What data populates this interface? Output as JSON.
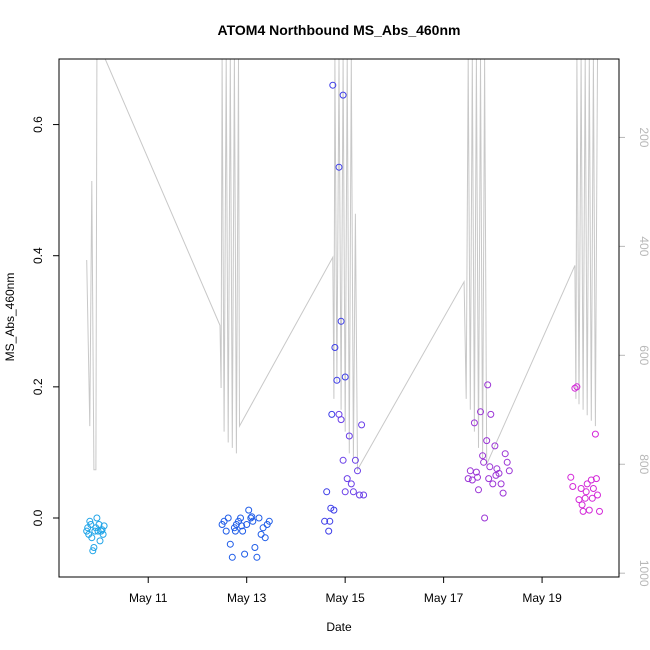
{
  "chart_data": {
    "type": "scatter",
    "title": "ATOM4 Northbound MS_Abs_460nm",
    "xlabel": "Date",
    "ylabel": "MS_Abs_460nm",
    "x_axis": {
      "type": "date",
      "range": [
        "2017-05-09 04:30",
        "2017-05-20 13:30"
      ],
      "ticks": [
        {
          "value": "2017-05-11",
          "label": "May 11"
        },
        {
          "value": "2017-05-13",
          "label": "May 13"
        },
        {
          "value": "2017-05-15",
          "label": "May 15"
        },
        {
          "value": "2017-05-17",
          "label": "May 17"
        },
        {
          "value": "2017-05-19",
          "label": "May 19"
        }
      ]
    },
    "y_axis": {
      "range": [
        -0.09,
        0.7
      ],
      "ticks": [
        0.0,
        0.2,
        0.4,
        0.6
      ],
      "tick_labels": [
        "0.0",
        "0.2",
        "0.4",
        "0.6"
      ]
    },
    "y2_axis": {
      "reversed": true,
      "range": [
        1007,
        56
      ],
      "ticks": [
        200,
        400,
        600,
        800,
        1000
      ],
      "tick_labels": [
        "200",
        "400",
        "600",
        "800",
        "1000"
      ],
      "color": "#b8b8b8"
    },
    "grid": false,
    "legend": "none",
    "series": [
      {
        "color": "#1fa4e8",
        "points": [
          [
            "2017-05-09 18:00",
            -0.02
          ],
          [
            "2017-05-09 18:30",
            -0.015
          ],
          [
            "2017-05-09 19:00",
            -0.025
          ],
          [
            "2017-05-09 19:30",
            -0.005
          ],
          [
            "2017-05-09 20:00",
            -0.01
          ],
          [
            "2017-05-09 20:30",
            -0.03
          ],
          [
            "2017-05-09 21:00",
            -0.05
          ],
          [
            "2017-05-09 21:30",
            -0.045
          ],
          [
            "2017-05-09 22:00",
            -0.02
          ],
          [
            "2017-05-09 22:30",
            -0.015
          ],
          [
            "2017-05-09 23:00",
            0.0
          ],
          [
            "2017-05-09 23:30",
            -0.02
          ],
          [
            "2017-05-10 00:00",
            -0.01
          ],
          [
            "2017-05-10 00:30",
            -0.035
          ],
          [
            "2017-05-10 01:00",
            -0.02
          ],
          [
            "2017-05-10 01:30",
            -0.018
          ],
          [
            "2017-05-10 02:00",
            -0.025
          ],
          [
            "2017-05-10 02:30",
            -0.012
          ]
        ]
      },
      {
        "color": "#1e5ce8",
        "points": [
          [
            "2017-05-12 12:00",
            -0.01
          ],
          [
            "2017-05-12 13:00",
            -0.005
          ],
          [
            "2017-05-12 14:00",
            -0.02
          ],
          [
            "2017-05-12 15:00",
            0.0
          ],
          [
            "2017-05-12 16:00",
            -0.04
          ],
          [
            "2017-05-12 17:00",
            -0.06
          ],
          [
            "2017-05-12 18:00",
            -0.015
          ],
          [
            "2017-05-12 19:00",
            -0.01
          ],
          [
            "2017-05-12 20:00",
            -0.005
          ],
          [
            "2017-05-12 21:00",
            0.0
          ],
          [
            "2017-05-12 22:00",
            -0.02
          ],
          [
            "2017-05-12 23:00",
            -0.055
          ],
          [
            "2017-05-13 00:00",
            -0.01
          ],
          [
            "2017-05-13 01:00",
            0.012
          ],
          [
            "2017-05-13 02:00",
            0.0
          ],
          [
            "2017-05-13 03:00",
            -0.005
          ],
          [
            "2017-05-13 04:00",
            -0.045
          ],
          [
            "2017-05-13 05:00",
            -0.06
          ],
          [
            "2017-05-13 06:00",
            0.0
          ],
          [
            "2017-05-13 07:00",
            -0.025
          ],
          [
            "2017-05-13 08:00",
            -0.015
          ],
          [
            "2017-05-13 09:00",
            -0.03
          ],
          [
            "2017-05-13 10:00",
            -0.01
          ],
          [
            "2017-05-13 11:00",
            -0.005
          ],
          [
            "2017-05-12 18:30",
            -0.02
          ],
          [
            "2017-05-12 21:30",
            -0.012
          ],
          [
            "2017-05-13 02:30",
            0.002
          ]
        ]
      },
      {
        "color": "#3d3de8",
        "points": [
          [
            "2017-05-14 14:00",
            -0.005
          ],
          [
            "2017-05-14 15:00",
            0.04
          ],
          [
            "2017-05-14 16:00",
            -0.02
          ],
          [
            "2017-05-14 17:00",
            0.015
          ],
          [
            "2017-05-14 18:00",
            0.66
          ],
          [
            "2017-05-14 19:00",
            0.26
          ],
          [
            "2017-05-14 20:00",
            0.21
          ],
          [
            "2017-05-14 21:00",
            0.535
          ],
          [
            "2017-05-14 22:00",
            0.3
          ],
          [
            "2017-05-14 23:00",
            0.645
          ],
          [
            "2017-05-15 00:00",
            0.215
          ],
          [
            "2017-05-14 17:30",
            0.158
          ],
          [
            "2017-05-14 18:30",
            0.012
          ],
          [
            "2017-05-14 16:30",
            -0.005
          ]
        ]
      },
      {
        "color": "#6a3fe8",
        "points": [
          [
            "2017-05-14 21:00",
            0.158
          ],
          [
            "2017-05-14 22:00",
            0.15
          ],
          [
            "2017-05-14 23:00",
            0.088
          ],
          [
            "2017-05-15 00:00",
            0.04
          ],
          [
            "2017-05-15 01:00",
            0.06
          ],
          [
            "2017-05-15 02:00",
            0.125
          ],
          [
            "2017-05-15 03:00",
            0.052
          ],
          [
            "2017-05-15 04:00",
            0.04
          ],
          [
            "2017-05-15 05:00",
            0.088
          ],
          [
            "2017-05-15 06:00",
            0.072
          ],
          [
            "2017-05-15 07:00",
            0.035
          ],
          [
            "2017-05-15 08:00",
            0.142
          ],
          [
            "2017-05-15 09:00",
            0.035
          ]
        ]
      },
      {
        "color": "#9b35d6",
        "points": [
          [
            "2017-05-17 12:00",
            0.06
          ],
          [
            "2017-05-17 13:00",
            0.072
          ],
          [
            "2017-05-17 14:00",
            0.058
          ],
          [
            "2017-05-17 15:00",
            0.145
          ],
          [
            "2017-05-17 16:00",
            0.07
          ],
          [
            "2017-05-17 17:00",
            0.043
          ],
          [
            "2017-05-17 18:00",
            0.162
          ],
          [
            "2017-05-17 19:00",
            0.095
          ],
          [
            "2017-05-17 20:00",
            0.0
          ],
          [
            "2017-05-17 21:00",
            0.118
          ],
          [
            "2017-05-17 22:00",
            0.06
          ],
          [
            "2017-05-17 23:00",
            0.158
          ],
          [
            "2017-05-18 00:00",
            0.052
          ],
          [
            "2017-05-18 01:00",
            0.11
          ],
          [
            "2017-05-18 02:00",
            0.075
          ],
          [
            "2017-05-18 03:00",
            0.068
          ],
          [
            "2017-05-18 04:00",
            0.052
          ],
          [
            "2017-05-18 05:00",
            0.038
          ],
          [
            "2017-05-18 06:00",
            0.098
          ],
          [
            "2017-05-18 07:00",
            0.085
          ],
          [
            "2017-05-18 08:00",
            0.072
          ],
          [
            "2017-05-17 16:30",
            0.062
          ],
          [
            "2017-05-17 19:30",
            0.085
          ],
          [
            "2017-05-17 22:30",
            0.078
          ],
          [
            "2017-05-18 01:30",
            0.065
          ],
          [
            "2017-05-17 21:30",
            0.203
          ]
        ]
      },
      {
        "color": "#d327d8",
        "points": [
          [
            "2017-05-19 14:00",
            0.062
          ],
          [
            "2017-05-19 15:00",
            0.048
          ],
          [
            "2017-05-19 16:00",
            0.198
          ],
          [
            "2017-05-19 17:00",
            0.2
          ],
          [
            "2017-05-19 18:00",
            0.028
          ],
          [
            "2017-05-19 19:00",
            0.045
          ],
          [
            "2017-05-19 20:00",
            0.01
          ],
          [
            "2017-05-19 21:00",
            0.03
          ],
          [
            "2017-05-19 22:00",
            0.052
          ],
          [
            "2017-05-19 23:00",
            0.012
          ],
          [
            "2017-05-20 00:00",
            0.058
          ],
          [
            "2017-05-20 01:00",
            0.045
          ],
          [
            "2017-05-20 02:00",
            0.128
          ],
          [
            "2017-05-20 03:00",
            0.035
          ],
          [
            "2017-05-20 04:00",
            0.01
          ],
          [
            "2017-05-19 19:30",
            0.02
          ],
          [
            "2017-05-19 21:30",
            0.04
          ],
          [
            "2017-05-20 00:30",
            0.03
          ],
          [
            "2017-05-20 02:30",
            0.06
          ]
        ]
      }
    ],
    "overlay_line": {
      "axis": "y2",
      "color": "#c8c8c8",
      "points": [
        [
          "2017-05-09 18:00",
          425
        ],
        [
          "2017-05-09 19:30",
          730
        ],
        [
          "2017-05-09 20:30",
          280
        ],
        [
          "2017-05-09 21:30",
          810
        ],
        [
          "2017-05-09 22:30",
          810
        ],
        [
          "2017-05-09 23:00",
          56
        ],
        [
          "2017-05-10 03:00",
          56
        ],
        [
          "2017-05-12 11:00",
          545
        ],
        [
          "2017-05-12 11:30",
          660
        ],
        [
          "2017-05-12 12:00",
          56
        ],
        [
          "2017-05-12 13:00",
          740
        ],
        [
          "2017-05-12 14:00",
          56
        ],
        [
          "2017-05-12 15:00",
          760
        ],
        [
          "2017-05-12 16:00",
          56
        ],
        [
          "2017-05-12 17:00",
          770
        ],
        [
          "2017-05-12 18:00",
          56
        ],
        [
          "2017-05-12 19:00",
          780
        ],
        [
          "2017-05-12 20:00",
          56
        ],
        [
          "2017-05-12 20:30",
          730
        ],
        [
          "2017-05-14 18:00",
          420
        ],
        [
          "2017-05-14 18:30",
          680
        ],
        [
          "2017-05-14 19:00",
          56
        ],
        [
          "2017-05-14 20:00",
          650
        ],
        [
          "2017-05-14 21:00",
          56
        ],
        [
          "2017-05-14 22:00",
          700
        ],
        [
          "2017-05-14 23:00",
          56
        ],
        [
          "2017-05-15 00:00",
          740
        ],
        [
          "2017-05-15 01:00",
          56
        ],
        [
          "2017-05-15 02:00",
          780
        ],
        [
          "2017-05-15 03:00",
          56
        ],
        [
          "2017-05-15 04:00",
          790
        ],
        [
          "2017-05-15 05:00",
          340
        ],
        [
          "2017-05-15 06:00",
          810
        ],
        [
          "2017-05-17 10:00",
          465
        ],
        [
          "2017-05-17 11:00",
          680
        ],
        [
          "2017-05-17 12:00",
          56
        ],
        [
          "2017-05-17 13:00",
          700
        ],
        [
          "2017-05-17 14:00",
          56
        ],
        [
          "2017-05-17 15:00",
          740
        ],
        [
          "2017-05-17 16:00",
          56
        ],
        [
          "2017-05-17 17:00",
          770
        ],
        [
          "2017-05-17 18:00",
          56
        ],
        [
          "2017-05-17 19:00",
          790
        ],
        [
          "2017-05-17 20:00",
          56
        ],
        [
          "2017-05-17 21:00",
          800
        ],
        [
          "2017-05-19 16:00",
          435
        ],
        [
          "2017-05-19 16:30",
          680
        ],
        [
          "2017-05-19 17:00",
          56
        ],
        [
          "2017-05-19 18:00",
          690
        ],
        [
          "2017-05-19 19:00",
          56
        ],
        [
          "2017-05-19 20:00",
          700
        ],
        [
          "2017-05-19 21:00",
          56
        ],
        [
          "2017-05-19 22:00",
          710
        ],
        [
          "2017-05-19 23:00",
          56
        ],
        [
          "2017-05-20 00:00",
          720
        ],
        [
          "2017-05-20 01:00",
          56
        ],
        [
          "2017-05-20 02:00",
          730
        ],
        [
          "2017-05-20 03:00",
          56
        ]
      ]
    }
  }
}
